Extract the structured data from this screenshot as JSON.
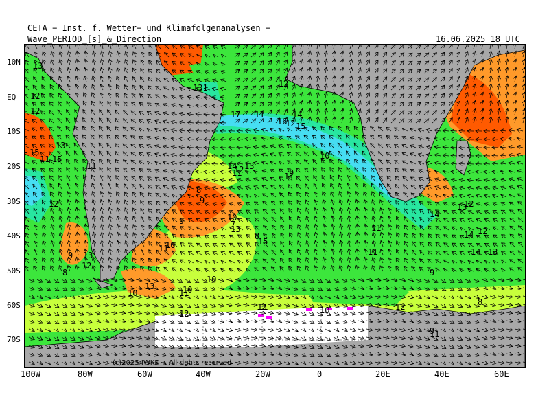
{
  "header": {
    "line1": "CETA − Inst. f. Wetter− und Klimafolgenanalysen −",
    "line2_left": "Wave_PERIOD_[s]_&_Direction",
    "line2_right": "16.06.2025 18 UTC"
  },
  "map": {
    "copyright": "(c)2025 IWKF − All rights reserved",
    "x_axis_labels": [
      "100W",
      "80W",
      "60W",
      "40W",
      "20W",
      "0",
      "20E",
      "40E",
      "60E"
    ],
    "y_axis_labels": [
      "10N",
      "EQ",
      "10S",
      "20S",
      "30S",
      "40S",
      "50S",
      "60S",
      "70S"
    ],
    "period_labels": [
      "13",
      "12",
      "12",
      "131",
      "17",
      "11",
      "12",
      "14",
      "16",
      "12",
      "15",
      "15",
      "13",
      "11",
      "15",
      "11",
      "12",
      "14",
      "12",
      "11",
      "13",
      "9",
      "11",
      "10",
      "8",
      "9",
      "10",
      "7",
      "8",
      "9",
      "10",
      "11",
      "9",
      "13",
      "12",
      "8",
      "10",
      "13",
      "12",
      "10",
      "11",
      "11",
      "10",
      "10",
      "12",
      "13",
      "15",
      "11",
      "11",
      "12",
      "13",
      "14",
      "14",
      "13",
      "12",
      "14",
      "12",
      "9",
      "8",
      "9",
      "11"
    ],
    "colors": {
      "land": "#a8a8a8",
      "ice": "#ffffff",
      "magenta": "#ff00ff",
      "period_6_8": "#ff5a00",
      "period_8_10": "#ff9a2a",
      "period_10_12": "#c8ff3c",
      "period_12_14": "#3ce63c",
      "period_14_16": "#28e6a0",
      "period_16_18": "#46ddf2",
      "period_18_plus": "#1ea0e6"
    }
  }
}
